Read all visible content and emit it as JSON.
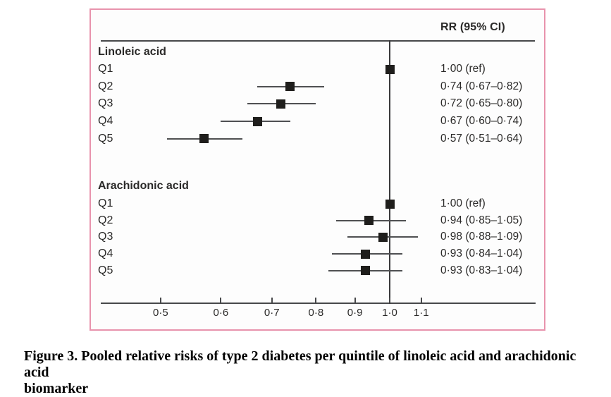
{
  "colors": {
    "border_pink": "#e893ad",
    "plot_line": "#47484a",
    "marker_black": "#1f1e1c",
    "text": "#2b2a29"
  },
  "figure_panel": {
    "header_label": "RR (95% CI)"
  },
  "chart_data": {
    "type": "scatter",
    "variant": "forest-plot",
    "title": "RR (95% CI)",
    "xlabel": "",
    "ylabel": "",
    "x_scale": "log",
    "xlim": [
      0.41,
      1.56
    ],
    "x_ticks": [
      0.5,
      0.6,
      0.7,
      0.8,
      0.9,
      1.0,
      1.1
    ],
    "x_tick_labels": [
      "0·5",
      "0·6",
      "0·7",
      "0·8",
      "0·9",
      "1·0",
      "1·1"
    ],
    "reference_line_x": 1.0,
    "marker_shape": "square",
    "grid": false,
    "groups": [
      {
        "label": "Linoleic acid",
        "rows": [
          {
            "label": "Q1",
            "rr": 1.0,
            "ci_low": null,
            "ci_high": null,
            "text": "1·00 (ref)"
          },
          {
            "label": "Q2",
            "rr": 0.74,
            "ci_low": 0.67,
            "ci_high": 0.82,
            "text": "0·74 (0·67–0·82)"
          },
          {
            "label": "Q3",
            "rr": 0.72,
            "ci_low": 0.65,
            "ci_high": 0.8,
            "text": "0·72 (0·65–0·80)"
          },
          {
            "label": "Q4",
            "rr": 0.67,
            "ci_low": 0.6,
            "ci_high": 0.74,
            "text": "0·67 (0·60–0·74)"
          },
          {
            "label": "Q5",
            "rr": 0.57,
            "ci_low": 0.51,
            "ci_high": 0.64,
            "text": "0·57 (0·51–0·64)"
          }
        ]
      },
      {
        "label": "Arachidonic acid",
        "rows": [
          {
            "label": "Q1",
            "rr": 1.0,
            "ci_low": null,
            "ci_high": null,
            "text": "1·00 (ref)"
          },
          {
            "label": "Q2",
            "rr": 0.94,
            "ci_low": 0.85,
            "ci_high": 1.05,
            "text": "0·94 (0·85–1·05)"
          },
          {
            "label": "Q3",
            "rr": 0.98,
            "ci_low": 0.88,
            "ci_high": 1.09,
            "text": "0·98 (0·88–1·09)"
          },
          {
            "label": "Q4",
            "rr": 0.93,
            "ci_low": 0.84,
            "ci_high": 1.04,
            "text": "0·93 (0·84–1·04)"
          },
          {
            "label": "Q5",
            "rr": 0.93,
            "ci_low": 0.83,
            "ci_high": 1.04,
            "text": "0·93 (0·83–1·04)"
          }
        ]
      }
    ]
  },
  "caption": {
    "line1": "Figure 3. Pooled relative risks of type 2 diabetes per quintile of linoleic acid and arachidonic acid",
    "line2": "biomarker"
  }
}
